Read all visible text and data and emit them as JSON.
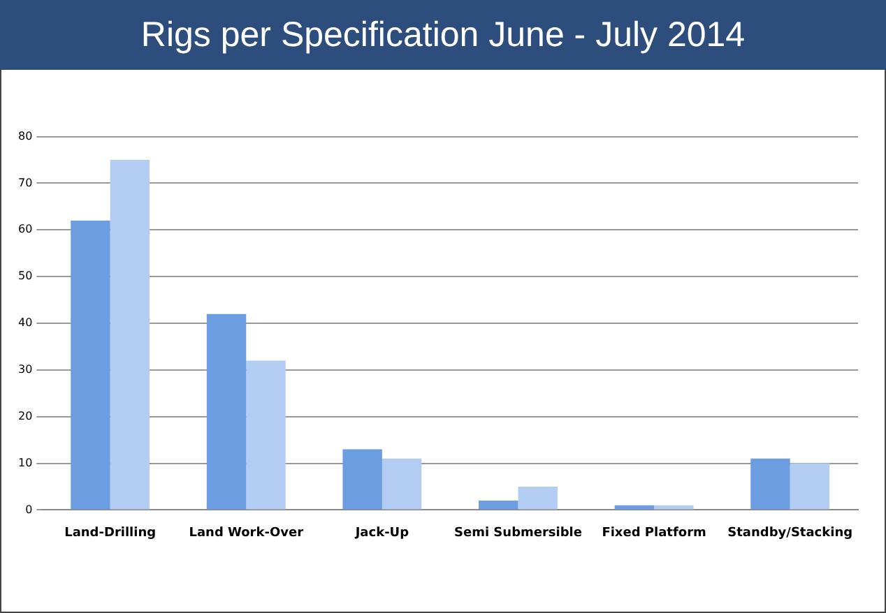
{
  "chart_data": {
    "type": "bar",
    "title": "Rigs per Specification June - July 2014",
    "categories": [
      "Land-Drilling",
      "Land Work-Over",
      "Jack-Up",
      "Semi Submersible",
      "Fixed Platform",
      "Standby/Stacking"
    ],
    "series": [
      {
        "color": "#6b9de0",
        "values": [
          62,
          42,
          13,
          2,
          1,
          11
        ]
      },
      {
        "color": "#b3cdf2",
        "values": [
          75,
          32,
          11,
          5,
          1,
          10
        ]
      }
    ],
    "ylim": [
      0,
      80
    ],
    "yticks": [
      0,
      10,
      20,
      30,
      40,
      50,
      60,
      70,
      80
    ],
    "grid": "y",
    "legend": false
  }
}
